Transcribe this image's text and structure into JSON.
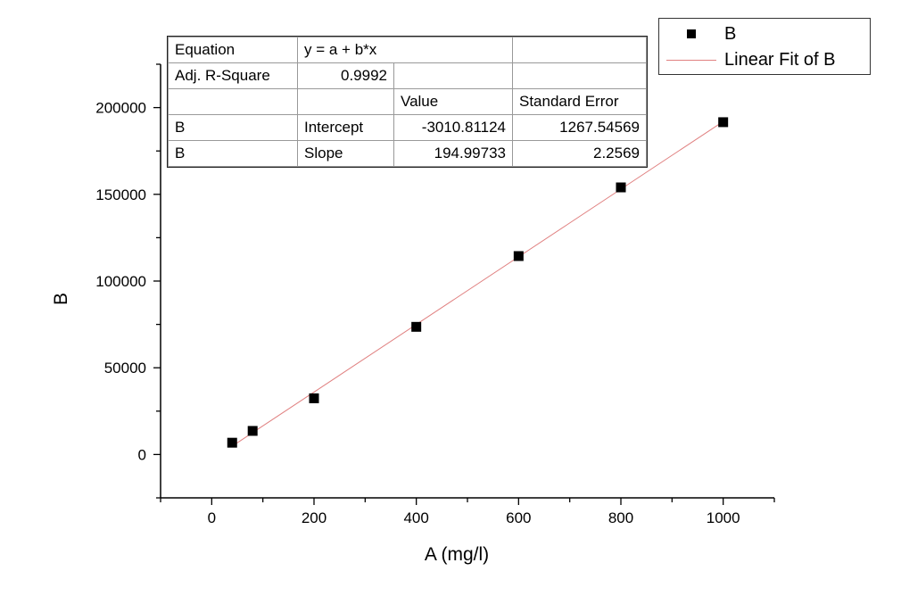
{
  "chart_data": {
    "type": "scatter",
    "xlabel": "A (mg/l)",
    "ylabel": "B",
    "xlim": [
      -100,
      1100
    ],
    "ylim": [
      -25000,
      225000
    ],
    "xticks": [
      0,
      200,
      400,
      600,
      800,
      1000
    ],
    "yticks": [
      0,
      50000,
      100000,
      150000,
      200000
    ],
    "xtick_labels": [
      "0",
      "200",
      "400",
      "600",
      "800",
      "1000"
    ],
    "ytick_labels": [
      "0",
      "50000",
      "100000",
      "150000",
      "200000"
    ],
    "grid": false,
    "legend_position": "top-right",
    "series": [
      {
        "name": "B",
        "kind": "scatter",
        "marker": "square",
        "color": "#000000",
        "x": [
          40,
          80,
          200,
          400,
          600,
          800,
          1000
        ],
        "y": [
          6800,
          13600,
          32400,
          73600,
          114400,
          154000,
          191600
        ]
      },
      {
        "name": "Linear Fit of B",
        "kind": "line",
        "color": "#e08080",
        "intercept": -3010.81124,
        "slope": 194.99733,
        "x_range": [
          40,
          1000
        ]
      }
    ],
    "legend": [
      "B",
      "Linear Fit of B"
    ],
    "fit_table": {
      "rows": [
        [
          "Equation",
          "y = a + b*x",
          "",
          ""
        ],
        [
          "Adj. R-Square",
          "0.9992",
          "",
          ""
        ],
        [
          "",
          "",
          "Value",
          "Standard Error"
        ],
        [
          "B",
          "Intercept",
          "-3010.81124",
          "1267.54569"
        ],
        [
          "B",
          "Slope",
          "194.99733",
          "2.2569"
        ]
      ]
    }
  }
}
